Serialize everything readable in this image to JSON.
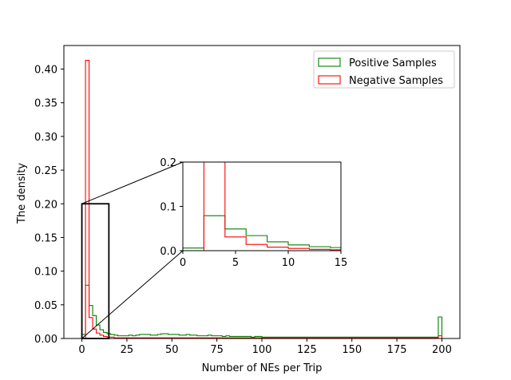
{
  "chart_data": {
    "type": "histogram",
    "xlabel": "Number of NEs per Trip",
    "ylabel": "The density",
    "xlim": [
      -10,
      210
    ],
    "ylim": [
      0,
      0.435
    ],
    "xticks": [
      0,
      25,
      50,
      75,
      100,
      125,
      150,
      175,
      200
    ],
    "yticks": [
      0.0,
      0.05,
      0.1,
      0.15,
      0.2,
      0.25,
      0.3,
      0.35,
      0.4
    ],
    "ytick_labels": [
      "0.00",
      "0.05",
      "0.10",
      "0.15",
      "0.20",
      "0.25",
      "0.30",
      "0.35",
      "0.40"
    ],
    "legend_position": "top-right",
    "series": [
      {
        "name": "Positive Samples",
        "color": "#008000",
        "bin_width": 2,
        "bin_start": 0,
        "values": [
          0.006,
          0.079,
          0.049,
          0.034,
          0.02,
          0.013,
          0.009,
          0.007,
          0.006,
          0.005,
          0.004,
          0.004,
          0.004,
          0.005,
          0.004,
          0.005,
          0.006,
          0.006,
          0.006,
          0.005,
          0.005,
          0.006,
          0.007,
          0.007,
          0.006,
          0.006,
          0.006,
          0.005,
          0.005,
          0.006,
          0.005,
          0.005,
          0.004,
          0.004,
          0.004,
          0.005,
          0.004,
          0.004,
          0.004,
          0.003,
          0.004,
          0.003,
          0.003,
          0.003,
          0.003,
          0.003,
          0.003,
          0.002,
          0.003,
          0.003,
          0.002,
          0.002,
          0.002,
          0.002,
          0.002,
          0.002,
          0.002,
          0.002,
          0.002,
          0.002,
          0.002,
          0.002,
          0.002,
          0.002,
          0.002,
          0.002,
          0.002,
          0.002,
          0.002,
          0.002,
          0.002,
          0.002,
          0.002,
          0.002,
          0.002,
          0.002,
          0.002,
          0.002,
          0.002,
          0.002,
          0.002,
          0.002,
          0.002,
          0.002,
          0.002,
          0.002,
          0.002,
          0.002,
          0.002,
          0.002,
          0.002,
          0.002,
          0.002,
          0.002,
          0.002,
          0.002,
          0.002,
          0.002,
          0.002,
          0.032
        ]
      },
      {
        "name": "Negative Samples",
        "color": "#ff0000",
        "bin_width": 2,
        "bin_start": 0,
        "values": [
          0.0,
          0.413,
          0.031,
          0.014,
          0.008,
          0.005,
          0.003,
          0.002,
          0.002,
          0.001,
          0.001,
          0.001,
          0.001,
          0.001,
          0.001,
          0.001,
          0.001,
          0.001,
          0.001,
          0.001,
          0.001,
          0.001,
          0.001,
          0.001,
          0.001,
          0.001,
          0.001,
          0.001,
          0.001,
          0.001,
          0.001,
          0.001,
          0.001,
          0.001,
          0.001,
          0.001,
          0.001,
          0.001,
          0.001,
          0.001,
          0.001,
          0.001,
          0.001,
          0.001,
          0.001,
          0.001,
          0.001,
          0.001,
          0.001,
          0.001,
          0.001,
          0.001,
          0.001,
          0.001,
          0.001,
          0.001,
          0.001,
          0.001,
          0.001,
          0.001,
          0.001,
          0.001,
          0.001,
          0.001,
          0.001,
          0.001,
          0.001,
          0.001,
          0.001,
          0.001,
          0.001,
          0.001,
          0.001,
          0.001,
          0.001,
          0.001,
          0.001,
          0.001,
          0.001,
          0.001,
          0.001,
          0.001,
          0.001,
          0.001,
          0.001,
          0.001,
          0.001,
          0.001,
          0.001,
          0.001,
          0.001,
          0.001,
          0.001,
          0.001,
          0.001,
          0.001,
          0.001,
          0.001,
          0.001,
          0.004
        ]
      }
    ],
    "inset": {
      "xlim": [
        0,
        15
      ],
      "ylim": [
        0,
        0.2
      ],
      "xticks": [
        0,
        5,
        10,
        15
      ],
      "yticks": [
        0.0,
        0.1,
        0.2
      ],
      "ytick_labels": [
        "0.0",
        "0.1",
        "0.2"
      ],
      "zoom_region": {
        "x": [
          0,
          15
        ],
        "y": [
          0,
          0.2
        ]
      }
    }
  }
}
